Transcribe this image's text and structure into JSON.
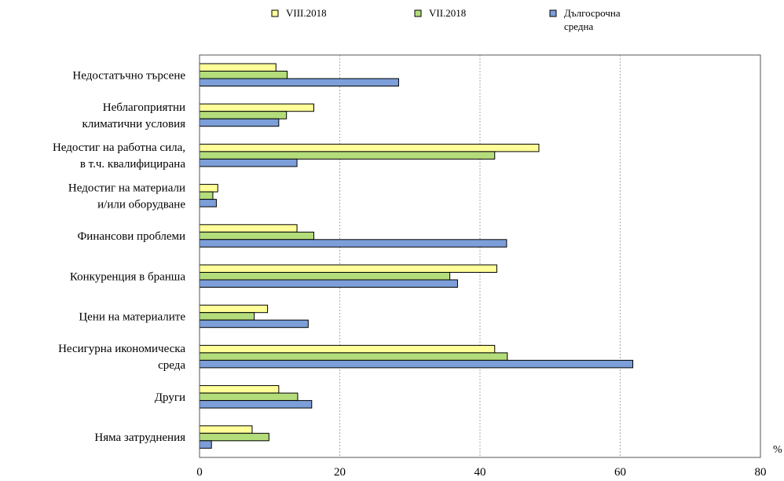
{
  "chart_data": {
    "type": "bar",
    "orientation": "horizontal",
    "unit_label": "%",
    "categories": [
      [
        "Недостатъчно търсене"
      ],
      [
        "Неблагоприятни",
        "климатични условия"
      ],
      [
        "Недостиг на работна сила,",
        "в т.ч. квалифицирана"
      ],
      [
        "Недостиг на материали",
        "и/или оборудване"
      ],
      [
        "Финансови проблеми"
      ],
      [
        "Конкуренция в бранша"
      ],
      [
        "Цени на материалите"
      ],
      [
        "Несигурна икономическа",
        "среда"
      ],
      [
        "Други"
      ],
      [
        "Няма затруднения"
      ]
    ],
    "series": [
      {
        "name": "VIII.2018",
        "color": "#ffff99",
        "values": [
          10.9,
          16.3,
          48.4,
          2.6,
          13.9,
          42.4,
          9.7,
          42.1,
          11.3,
          7.5
        ]
      },
      {
        "name": "VII.2018",
        "color": "#b3dc7a",
        "values": [
          12.5,
          12.4,
          42.1,
          1.9,
          16.3,
          35.7,
          7.8,
          43.9,
          14.0,
          9.9
        ]
      },
      {
        "name": "Дългосрочна средна",
        "color": "#7c9fd9",
        "values": [
          28.4,
          11.3,
          13.9,
          2.4,
          43.8,
          36.8,
          15.5,
          61.8,
          16.0,
          1.7
        ]
      }
    ],
    "xlim": [
      0,
      80
    ],
    "xticks": [
      "0",
      "20",
      "40",
      "60",
      "80"
    ],
    "grid": true,
    "legend_position": "top",
    "legend": [
      {
        "label_lines": [
          "VIII.2018"
        ]
      },
      {
        "label_lines": [
          "VII.2018"
        ]
      },
      {
        "label_lines": [
          "Дългосрочна",
          "средна"
        ]
      }
    ]
  }
}
